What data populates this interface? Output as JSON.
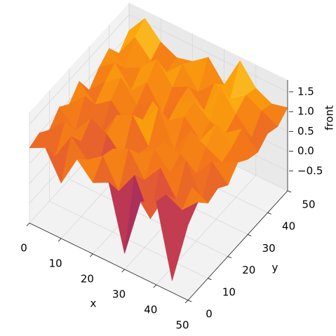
{
  "chart_data": {
    "type": "surface",
    "xlabel": "x",
    "ylabel": "y",
    "zlabel": "front",
    "cmap": "inferno",
    "xlim": [
      0,
      50
    ],
    "ylim": [
      0,
      50
    ],
    "zlim": [
      -1,
      1.8
    ],
    "xticks": [
      0,
      10,
      20,
      30,
      40,
      50
    ],
    "yticks": [
      0,
      10,
      20,
      30,
      40,
      50
    ],
    "zticks": [
      {
        "value": -0.5,
        "label": "−0.5"
      },
      {
        "value": 0,
        "label": "0.0"
      },
      0.5,
      {
        "value": 1,
        "label": "1.0"
      },
      1.5
    ],
    "grid": true,
    "x": [
      0,
      5,
      10,
      15,
      20,
      25,
      30,
      35,
      40,
      45,
      50
    ],
    "y": [
      0,
      5,
      10,
      15,
      20,
      25,
      30,
      35,
      40,
      45,
      50
    ],
    "z": [
      [
        0.9,
        1.1,
        0.4,
        1.2,
        0.8,
        1.0,
        -0.6,
        0.9,
        1.1,
        -0.7,
        0.9
      ],
      [
        1.0,
        0.6,
        1.3,
        0.9,
        1.2,
        0.5,
        1.1,
        0.2,
        1.0,
        0.8,
        1.2
      ],
      [
        0.8,
        1.2,
        0.9,
        0.3,
        1.1,
        1.3,
        0.7,
        1.2,
        0.6,
        1.1,
        0.9
      ],
      [
        1.1,
        0.7,
        1.2,
        1.0,
        0.6,
        0.9,
        1.2,
        0.8,
        1.3,
        0.5,
        1.0
      ],
      [
        0.9,
        1.3,
        0.5,
        1.2,
        1.4,
        0.8,
        1.1,
        1.0,
        0.7,
        1.2,
        0.8
      ],
      [
        1.2,
        0.8,
        1.1,
        0.7,
        1.0,
        1.5,
        0.6,
        1.3,
        1.1,
        0.9,
        1.1
      ],
      [
        0.7,
        1.1,
        1.4,
        0.9,
        1.2,
        0.9,
        1.2,
        0.8,
        1.4,
        1.0,
        0.9
      ],
      [
        1.0,
        1.3,
        0.8,
        1.2,
        0.6,
        1.1,
        1.3,
        1.0,
        0.9,
        1.2,
        0.8
      ],
      [
        1.2,
        0.9,
        1.1,
        1.5,
        1.0,
        1.2,
        0.8,
        1.6,
        1.1,
        0.7,
        1.0
      ],
      [
        0.8,
        1.4,
        1.0,
        0.9,
        1.3,
        0.8,
        1.2,
        1.0,
        1.3,
        1.1,
        0.9
      ],
      [
        1.1,
        1.6,
        1.2,
        1.0,
        1.1,
        1.4,
        0.9,
        1.7,
        1.2,
        1.0,
        1.1
      ]
    ]
  }
}
